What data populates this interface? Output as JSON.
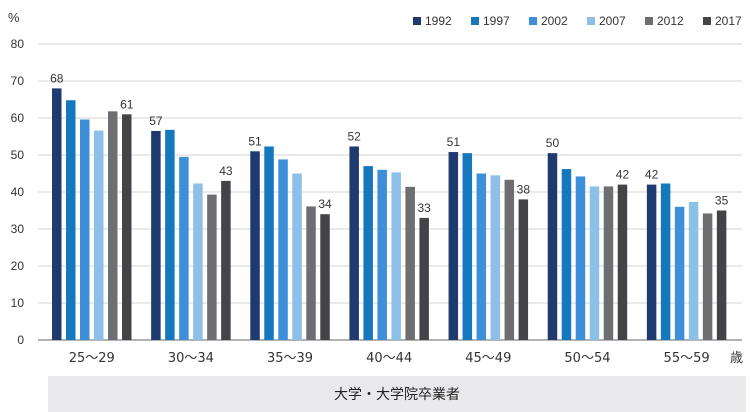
{
  "chart_data": {
    "type": "bar",
    "ylabel": "%",
    "ylim": [
      0,
      80
    ],
    "yticks": [
      0,
      10,
      20,
      30,
      40,
      50,
      60,
      70,
      80
    ],
    "categories": [
      "25～29",
      "30～34",
      "35～39",
      "40～44",
      "45～49",
      "50～54",
      "55～59"
    ],
    "xunit": "歳",
    "footer": "大学・大学院卒業者",
    "legend_position": "top-right",
    "grid": true,
    "series": [
      {
        "name": "1992",
        "color": "#1f3a6e",
        "values": [
          68,
          56.5,
          51,
          52.3,
          50.8,
          50.5,
          42
        ]
      },
      {
        "name": "1997",
        "color": "#1577bd",
        "values": [
          64.8,
          56.8,
          52.3,
          47,
          50.5,
          46.2,
          42.3
        ]
      },
      {
        "name": "2002",
        "color": "#3d8fd9",
        "values": [
          59.6,
          49.5,
          48.8,
          46,
          45,
          44.2,
          36
        ]
      },
      {
        "name": "2007",
        "color": "#8cc0e8",
        "values": [
          56.6,
          42.3,
          45,
          45.3,
          44.5,
          41.5,
          37.3
        ]
      },
      {
        "name": "2012",
        "color": "#6e6e72",
        "values": [
          61.8,
          39.3,
          36.1,
          41.4,
          43.3,
          41.5,
          34.2
        ]
      },
      {
        "name": "2017",
        "color": "#444448",
        "values": [
          61,
          43,
          34,
          33,
          38,
          42,
          35
        ]
      }
    ],
    "data_labels": [
      {
        "category": 0,
        "series": 0,
        "text": "68"
      },
      {
        "category": 0,
        "series": 5,
        "text": "61"
      },
      {
        "category": 1,
        "series": 0,
        "text": "57"
      },
      {
        "category": 1,
        "series": 5,
        "text": "43"
      },
      {
        "category": 2,
        "series": 0,
        "text": "51"
      },
      {
        "category": 2,
        "series": 5,
        "text": "34"
      },
      {
        "category": 3,
        "series": 0,
        "text": "52"
      },
      {
        "category": 3,
        "series": 5,
        "text": "33"
      },
      {
        "category": 4,
        "series": 0,
        "text": "51"
      },
      {
        "category": 4,
        "series": 5,
        "text": "38"
      },
      {
        "category": 5,
        "series": 0,
        "text": "50"
      },
      {
        "category": 5,
        "series": 5,
        "text": "42"
      },
      {
        "category": 6,
        "series": 0,
        "text": "42"
      },
      {
        "category": 6,
        "series": 5,
        "text": "35"
      }
    ]
  }
}
